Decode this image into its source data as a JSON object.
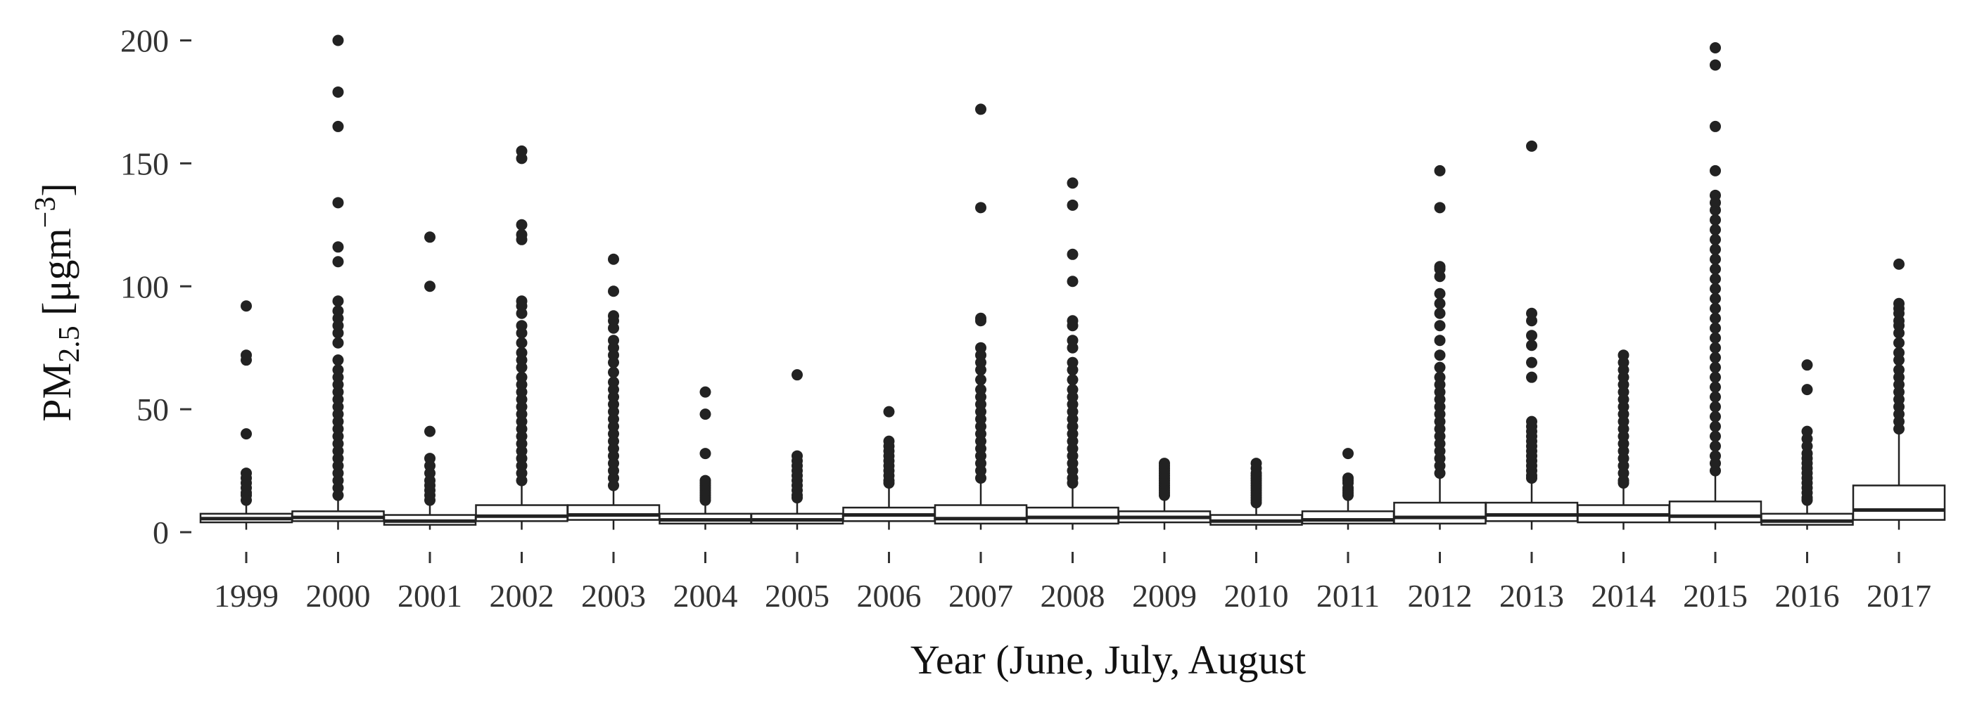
{
  "chart_data": {
    "type": "boxplot",
    "xlabel": "Year (June, July, August",
    "ylabel_main": "PM",
    "ylabel_subscript": "2.5",
    "ylabel_unit": " [μgm",
    "ylabel_unit_sup": "−3",
    "ylabel_close": "]",
    "ylim": [
      -8,
      205
    ],
    "yticks": [
      0,
      50,
      100,
      150,
      200
    ],
    "box_color": "#222222",
    "point_color": "#222222",
    "categories": [
      "1999",
      "2000",
      "2001",
      "2002",
      "2003",
      "2004",
      "2005",
      "2006",
      "2007",
      "2008",
      "2009",
      "2010",
      "2011",
      "2012",
      "2013",
      "2014",
      "2015",
      "2016",
      "2017"
    ],
    "boxes": [
      {
        "category": "1999",
        "min": 1,
        "q1": 4,
        "median": 5.5,
        "q3": 7.5,
        "max": 12,
        "outliers": [
          92,
          72,
          70,
          40,
          24,
          22,
          20,
          18,
          16,
          15,
          13
        ]
      },
      {
        "category": "2000",
        "min": 1,
        "q1": 4.5,
        "median": 6,
        "q3": 8.5,
        "max": 13,
        "outliers": [
          200,
          179,
          165,
          134,
          116,
          110,
          94,
          90,
          87,
          84,
          81,
          77,
          70,
          66,
          63,
          60,
          57,
          54,
          51,
          48,
          45,
          42,
          39,
          36,
          33,
          30,
          27,
          24,
          21,
          18,
          15
        ]
      },
      {
        "category": "2001",
        "min": 1,
        "q1": 3,
        "median": 4.5,
        "q3": 7,
        "max": 12,
        "outliers": [
          120,
          100,
          41,
          30,
          27,
          24,
          21,
          19,
          17,
          15,
          13
        ]
      },
      {
        "category": "2002",
        "min": 1,
        "q1": 4.5,
        "median": 6.5,
        "q3": 11,
        "max": 20,
        "outliers": [
          155,
          152,
          125,
          121,
          119,
          94,
          92,
          89,
          84,
          81,
          77,
          73,
          70,
          67,
          63,
          60,
          57,
          54,
          51,
          48,
          45,
          42,
          39,
          36,
          33,
          30,
          27,
          24,
          21
        ]
      },
      {
        "category": "2003",
        "min": 1,
        "q1": 5,
        "median": 7,
        "q3": 11,
        "max": 17,
        "outliers": [
          111,
          98,
          88,
          86,
          83,
          78,
          75,
          72,
          69,
          65,
          61,
          58,
          55,
          52,
          49,
          46,
          43,
          40,
          37,
          34,
          31,
          28,
          25,
          22,
          19
        ]
      },
      {
        "category": "2004",
        "min": 1,
        "q1": 3.5,
        "median": 5,
        "q3": 7.5,
        "max": 12,
        "outliers": [
          57,
          48,
          32,
          21,
          20,
          19,
          18,
          17,
          16,
          15,
          14,
          13
        ]
      },
      {
        "category": "2005",
        "min": 1,
        "q1": 3.5,
        "median": 5,
        "q3": 7.5,
        "max": 13,
        "outliers": [
          64,
          31,
          29,
          27,
          25,
          23,
          21,
          19,
          17,
          15,
          14
        ]
      },
      {
        "category": "2006",
        "min": 1,
        "q1": 4.5,
        "median": 7,
        "q3": 10,
        "max": 19,
        "outliers": [
          49,
          37,
          35,
          33,
          31,
          29,
          27,
          25,
          23,
          21,
          20
        ]
      },
      {
        "category": "2007",
        "min": 1,
        "q1": 3.5,
        "median": 5.5,
        "q3": 11,
        "max": 21,
        "outliers": [
          172,
          132,
          87,
          86,
          75,
          72,
          69,
          66,
          62,
          58,
          55,
          52,
          49,
          46,
          43,
          40,
          37,
          34,
          31,
          28,
          25,
          22
        ]
      },
      {
        "category": "2008",
        "min": 1,
        "q1": 3.5,
        "median": 6,
        "q3": 10,
        "max": 19,
        "outliers": [
          142,
          133,
          113,
          102,
          86,
          84,
          78,
          75,
          69,
          66,
          62,
          58,
          55,
          52,
          49,
          46,
          43,
          40,
          37,
          34,
          31,
          28,
          25,
          22,
          20
        ]
      },
      {
        "category": "2009",
        "min": 1,
        "q1": 4,
        "median": 6,
        "q3": 8.5,
        "max": 14,
        "outliers": [
          28,
          27,
          26,
          25,
          24,
          23,
          22,
          21,
          20,
          19,
          18,
          17,
          16,
          15
        ]
      },
      {
        "category": "2010",
        "min": 1,
        "q1": 3,
        "median": 4.5,
        "q3": 7,
        "max": 11,
        "outliers": [
          28,
          26,
          24,
          23,
          22,
          21,
          20,
          19,
          18,
          17,
          16,
          15,
          14,
          13,
          12
        ]
      },
      {
        "category": "2011",
        "min": 1,
        "q1": 3.5,
        "median": 5,
        "q3": 8.5,
        "max": 14,
        "outliers": [
          32,
          22,
          21,
          20,
          18,
          17,
          16,
          15
        ]
      },
      {
        "category": "2012",
        "min": 1,
        "q1": 3.5,
        "median": 6,
        "q3": 12,
        "max": 23,
        "outliers": [
          147,
          132,
          108,
          107,
          104,
          97,
          93,
          89,
          84,
          78,
          72,
          67,
          63,
          60,
          57,
          54,
          51,
          48,
          45,
          42,
          39,
          36,
          33,
          30,
          27,
          24
        ]
      },
      {
        "category": "2013",
        "min": 1,
        "q1": 4.5,
        "median": 7,
        "q3": 12,
        "max": 21,
        "outliers": [
          157,
          89,
          86,
          80,
          76,
          69,
          63,
          45,
          43,
          41,
          39,
          37,
          35,
          33,
          31,
          29,
          27,
          25,
          23,
          22
        ]
      },
      {
        "category": "2014",
        "min": 1,
        "q1": 4,
        "median": 7,
        "q3": 11,
        "max": 19,
        "outliers": [
          72,
          69,
          66,
          63,
          60,
          57,
          54,
          51,
          48,
          45,
          42,
          39,
          36,
          33,
          30,
          27,
          24,
          21,
          20
        ]
      },
      {
        "category": "2015",
        "min": 1,
        "q1": 4,
        "median": 6.5,
        "q3": 12.5,
        "max": 23,
        "outliers": [
          197,
          190,
          165,
          147,
          137,
          134,
          131,
          127,
          123,
          119,
          115,
          111,
          107,
          103,
          99,
          95,
          91,
          87,
          83,
          79,
          75,
          71,
          67,
          63,
          59,
          55,
          51,
          47,
          43,
          39,
          35,
          31,
          28,
          25
        ]
      },
      {
        "category": "2016",
        "min": 1,
        "q1": 3,
        "median": 4.5,
        "q3": 7.5,
        "max": 12,
        "outliers": [
          68,
          58,
          41,
          38,
          35,
          32,
          30,
          28,
          26,
          24,
          22,
          20,
          18,
          16,
          14,
          13
        ]
      },
      {
        "category": "2017",
        "min": 1,
        "q1": 5,
        "median": 9,
        "q3": 19,
        "max": 40,
        "outliers": [
          109,
          93,
          91,
          89,
          86,
          84,
          81,
          77,
          73,
          70,
          66,
          63,
          60,
          57,
          54,
          51,
          48,
          45,
          42
        ]
      }
    ]
  }
}
